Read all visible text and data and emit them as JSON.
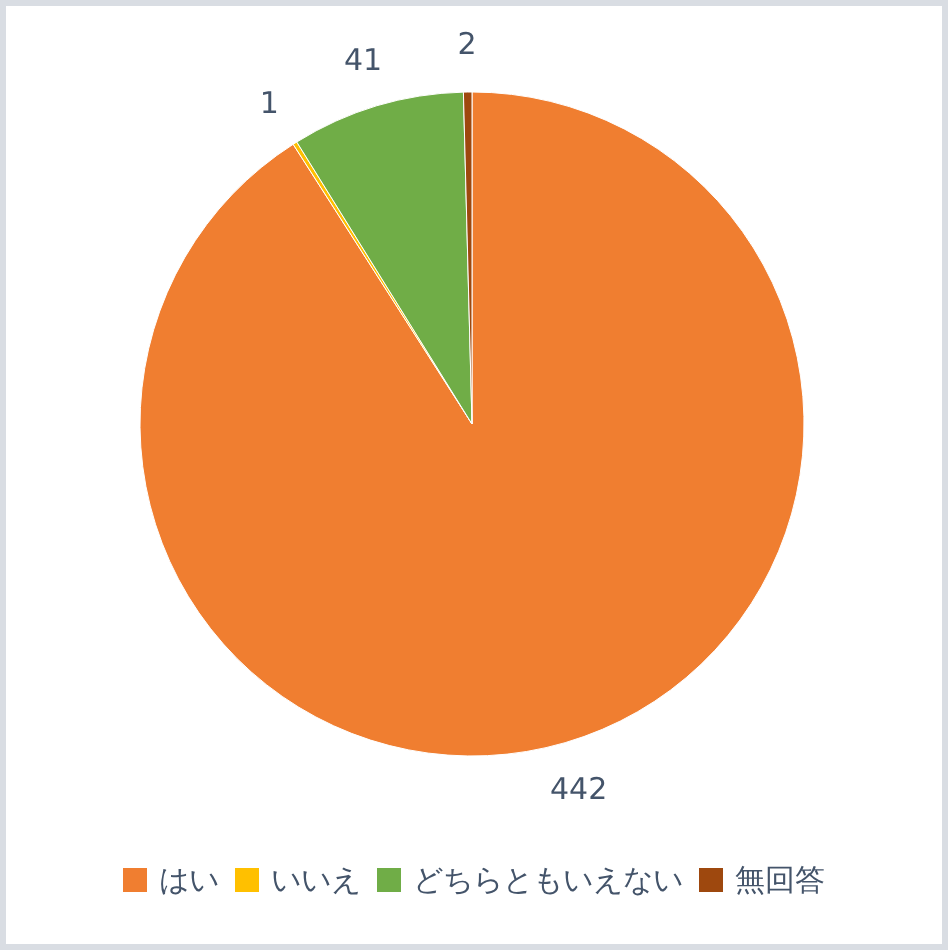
{
  "chart_data": {
    "type": "pie",
    "categories": [
      "はい",
      "いいえ",
      "どちらともいえない",
      "無回答"
    ],
    "values": [
      442,
      1,
      41,
      2
    ],
    "colors": [
      "#f07e30",
      "#ffc000",
      "#70ad47",
      "#9e480e"
    ],
    "data_labels": true,
    "legend": "bottom"
  }
}
